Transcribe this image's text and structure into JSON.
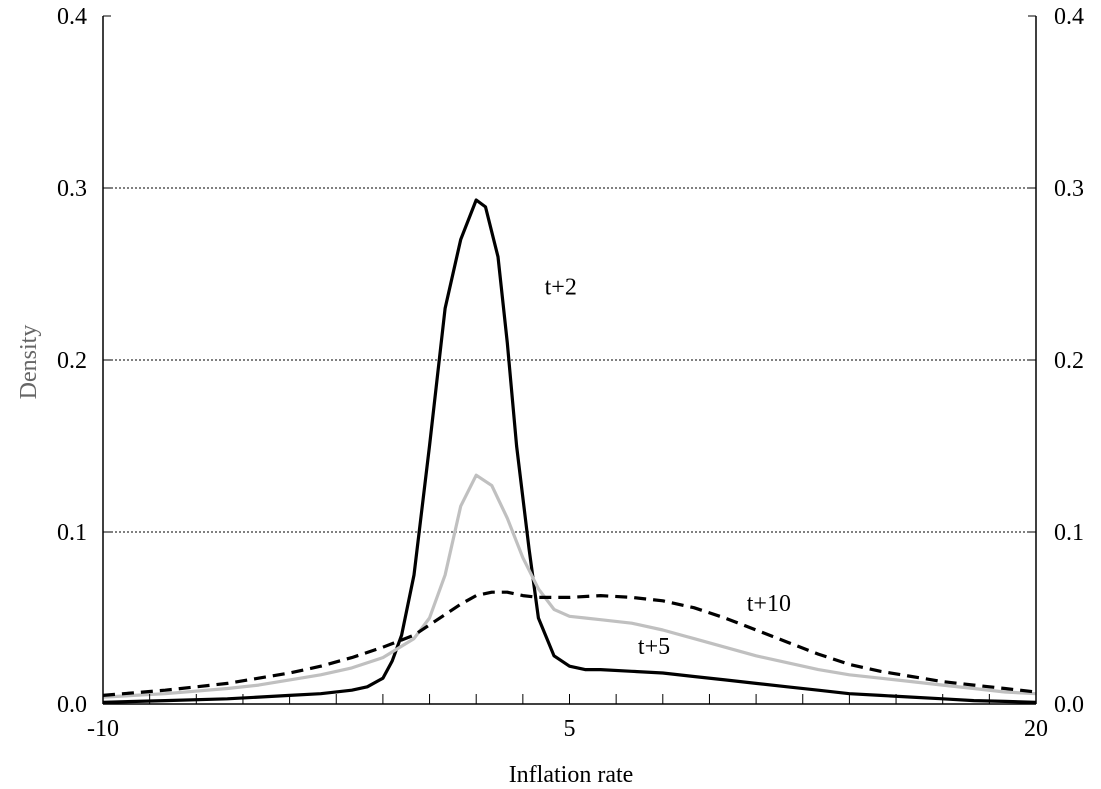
{
  "chart_data": {
    "type": "line",
    "xlabel": "Inflation rate",
    "ylabel": "Density",
    "xlim": [
      -10,
      20
    ],
    "ylim": [
      0,
      0.4
    ],
    "x_ticks": [
      -10,
      5,
      20
    ],
    "x_tick_labels": [
      "-10",
      "5",
      "20"
    ],
    "x_minor_step": 1.5,
    "y_ticks": [
      0,
      0.1,
      0.2,
      0.3,
      0.4
    ],
    "y_tick_labels": [
      "0.0",
      "0.1",
      "0.2",
      "0.3",
      "0.4"
    ],
    "grid": "horizontal dotted at 0.1, 0.2, 0.3",
    "secondary_y_axis": true,
    "legend": "none",
    "annotations": [
      {
        "text": "t+2",
        "x": 4.2,
        "y": 0.238
      },
      {
        "text": "t+5",
        "x": 7.2,
        "y": 0.029
      },
      {
        "text": "t+10",
        "x": 10.7,
        "y": 0.054
      }
    ],
    "series": [
      {
        "color": "#000000",
        "style": "solid",
        "x": [
          -10,
          -8,
          -6,
          -5,
          -4,
          -3,
          -2,
          -1.5,
          -1,
          -0.7,
          -0.4,
          0,
          0.5,
          1,
          1.5,
          2,
          2.3,
          2.7,
          3,
          3.3,
          3.7,
          4,
          4.5,
          5,
          5.5,
          6,
          7,
          8,
          9,
          10,
          11,
          12,
          13,
          14,
          15,
          16,
          17,
          18,
          19,
          20
        ],
        "values": [
          0.001,
          0.002,
          0.003,
          0.004,
          0.005,
          0.006,
          0.008,
          0.01,
          0.015,
          0.025,
          0.04,
          0.075,
          0.15,
          0.23,
          0.27,
          0.293,
          0.289,
          0.26,
          0.21,
          0.15,
          0.09,
          0.05,
          0.028,
          0.022,
          0.02,
          0.02,
          0.019,
          0.018,
          0.016,
          0.014,
          0.012,
          0.01,
          0.008,
          0.006,
          0.005,
          0.004,
          0.003,
          0.002,
          0.0015,
          0.001
        ]
      },
      {
        "color": "#c0c0c0",
        "style": "solid",
        "x": [
          -10,
          -8,
          -6,
          -5,
          -4,
          -3,
          -2,
          -1,
          0,
          0.5,
          1,
          1.5,
          2,
          2.5,
          3,
          3.5,
          4,
          4.5,
          5,
          5.5,
          6,
          7,
          8,
          9,
          10,
          11,
          12,
          13,
          14,
          15,
          16,
          17,
          18,
          19,
          20
        ],
        "values": [
          0.004,
          0.006,
          0.009,
          0.011,
          0.014,
          0.017,
          0.021,
          0.027,
          0.038,
          0.05,
          0.075,
          0.115,
          0.133,
          0.127,
          0.108,
          0.085,
          0.067,
          0.055,
          0.051,
          0.05,
          0.049,
          0.047,
          0.043,
          0.038,
          0.033,
          0.028,
          0.024,
          0.02,
          0.017,
          0.015,
          0.013,
          0.011,
          0.009,
          0.007,
          0.006
        ]
      },
      {
        "color": "#000000",
        "style": "dashed",
        "x": [
          -10,
          -8,
          -6,
          -5,
          -4,
          -3,
          -2,
          -1,
          0,
          0.5,
          1,
          1.5,
          2,
          2.5,
          3,
          3.5,
          4,
          5,
          6,
          7,
          8,
          9,
          10,
          11,
          12,
          13,
          14,
          15,
          16,
          17,
          18,
          19,
          20
        ],
        "values": [
          0.005,
          0.008,
          0.012,
          0.015,
          0.018,
          0.022,
          0.027,
          0.033,
          0.04,
          0.046,
          0.052,
          0.058,
          0.063,
          0.065,
          0.065,
          0.063,
          0.062,
          0.062,
          0.063,
          0.062,
          0.06,
          0.056,
          0.05,
          0.043,
          0.036,
          0.029,
          0.023,
          0.019,
          0.016,
          0.013,
          0.011,
          0.009,
          0.007
        ]
      }
    ]
  }
}
